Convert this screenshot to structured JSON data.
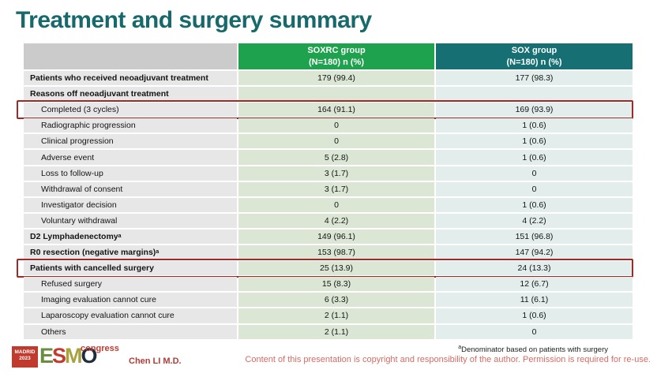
{
  "slide": {
    "title": "Treatment and surgery summary"
  },
  "colors": {
    "title_teal": "#17696c",
    "header_green": "#1fa24e",
    "header_teal": "#166f72",
    "header_gray": "#cbcbcb",
    "body_gray": "#e7e7e7",
    "body_light_green": "#dbe6d5",
    "body_light_teal": "#e3eeec",
    "highlight_red": "#9c2a28",
    "logo_red": "#c13a2e",
    "copyright_red": "#d96b63"
  },
  "table": {
    "header": {
      "col1": "",
      "col2_title": "SOXRC group",
      "col2_sub": "(N=180)  n (%)",
      "col3_title": "SOX group",
      "col3_sub": "(N=180)  n (%)"
    },
    "rows": [
      {
        "label": "Patients who received neoadjuvant treatment",
        "soxrc": "179 (99.4)",
        "sox": "177 (98.3)",
        "bold": true,
        "indent": false,
        "highlight": false,
        "sup": ""
      },
      {
        "label": "Reasons off neoadjuvant treatment",
        "soxrc": "",
        "sox": "",
        "bold": true,
        "indent": false,
        "highlight": false,
        "sup": ""
      },
      {
        "label": "Completed (3 cycles)",
        "soxrc": "164 (91.1)",
        "sox": "169 (93.9)",
        "bold": false,
        "indent": true,
        "highlight": true,
        "sup": ""
      },
      {
        "label": "Radiographic progression",
        "soxrc": "0",
        "sox": "1 (0.6)",
        "bold": false,
        "indent": true,
        "highlight": false,
        "sup": ""
      },
      {
        "label": "Clinical progression",
        "soxrc": "0",
        "sox": "1 (0.6)",
        "bold": false,
        "indent": true,
        "highlight": false,
        "sup": ""
      },
      {
        "label": "Adverse event",
        "soxrc": "5 (2.8)",
        "sox": "1 (0.6)",
        "bold": false,
        "indent": true,
        "highlight": false,
        "sup": ""
      },
      {
        "label": "Loss to follow-up",
        "soxrc": "3 (1.7)",
        "sox": "0",
        "bold": false,
        "indent": true,
        "highlight": false,
        "sup": ""
      },
      {
        "label": "Withdrawal of consent",
        "soxrc": "3 (1.7)",
        "sox": "0",
        "bold": false,
        "indent": true,
        "highlight": false,
        "sup": ""
      },
      {
        "label": "Investigator decision",
        "soxrc": "0",
        "sox": "1 (0.6)",
        "bold": false,
        "indent": true,
        "highlight": false,
        "sup": ""
      },
      {
        "label": "Voluntary withdrawal",
        "soxrc": "4 (2.2)",
        "sox": "4 (2.2)",
        "bold": false,
        "indent": true,
        "highlight": false,
        "sup": ""
      },
      {
        "label": "D2 Lymphadenectomy",
        "soxrc": "149 (96.1)",
        "sox": "151 (96.8)",
        "bold": true,
        "indent": false,
        "highlight": false,
        "sup": "a"
      },
      {
        "label": "R0 resection (negative margins)",
        "soxrc": "153 (98.7)",
        "sox": "147 (94.2)",
        "bold": true,
        "indent": false,
        "highlight": false,
        "sup": "a"
      },
      {
        "label": "Patients with cancelled surgery",
        "soxrc": "25 (13.9)",
        "sox": "24 (13.3)",
        "bold": true,
        "indent": false,
        "highlight": true,
        "sup": ""
      },
      {
        "label": "Refused surgery",
        "soxrc": "15 (8.3)",
        "sox": "12 (6.7)",
        "bold": false,
        "indent": true,
        "highlight": false,
        "sup": ""
      },
      {
        "label": "Imaging evaluation cannot cure",
        "soxrc": "6 (3.3)",
        "sox": "11 (6.1)",
        "bold": false,
        "indent": true,
        "highlight": false,
        "sup": ""
      },
      {
        "label": "Laparoscopy evaluation cannot cure",
        "soxrc": "2 (1.1)",
        "sox": "1 (0.6)",
        "bold": false,
        "indent": true,
        "highlight": false,
        "sup": ""
      },
      {
        "label": "Others",
        "soxrc": "2 (1.1)",
        "sox": "0",
        "bold": false,
        "indent": true,
        "highlight": false,
        "sup": ""
      }
    ]
  },
  "footer": {
    "logo": {
      "venue": "MADRID",
      "year": "2023",
      "congress": "congress",
      "brand_letters": [
        {
          "ch": "E",
          "color": "#6b8e3e"
        },
        {
          "ch": "S",
          "color": "#c23b2e"
        },
        {
          "ch": "M",
          "color": "#a8a23f"
        },
        {
          "ch": "O",
          "color": "#1e2d3e"
        }
      ]
    },
    "author": "Chen LI M.D.",
    "footnote_sup": "a",
    "footnote": "Denominator based on patients with surgery",
    "copyright": "Content of this presentation is copyright and responsibility of the author. Permission is required for re-use."
  }
}
